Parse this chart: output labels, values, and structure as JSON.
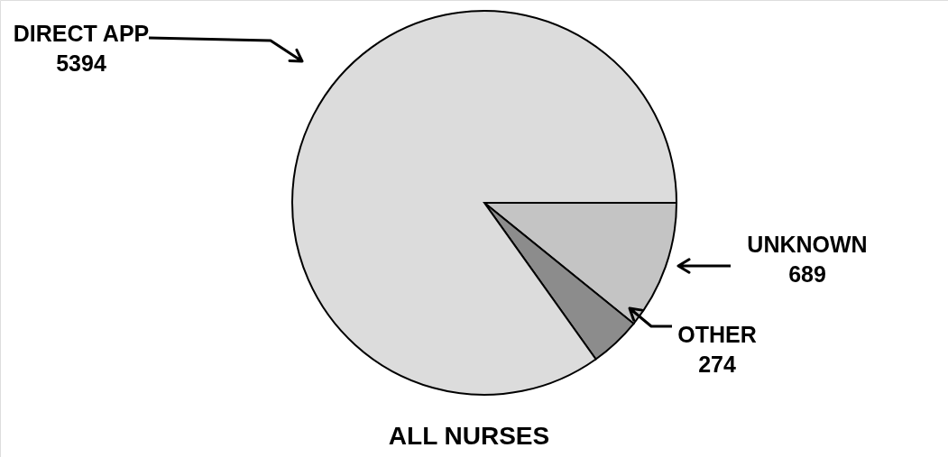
{
  "chart_data": {
    "type": "pie",
    "title": "ALL NURSES",
    "categories": [
      "DIRECT APP",
      "UNKNOWN",
      "OTHER"
    ],
    "values": [
      5394,
      689,
      274
    ],
    "colors": [
      "#dcdcdc",
      "#c4c4c4",
      "#8c8c8c"
    ],
    "data_labels": true
  }
}
